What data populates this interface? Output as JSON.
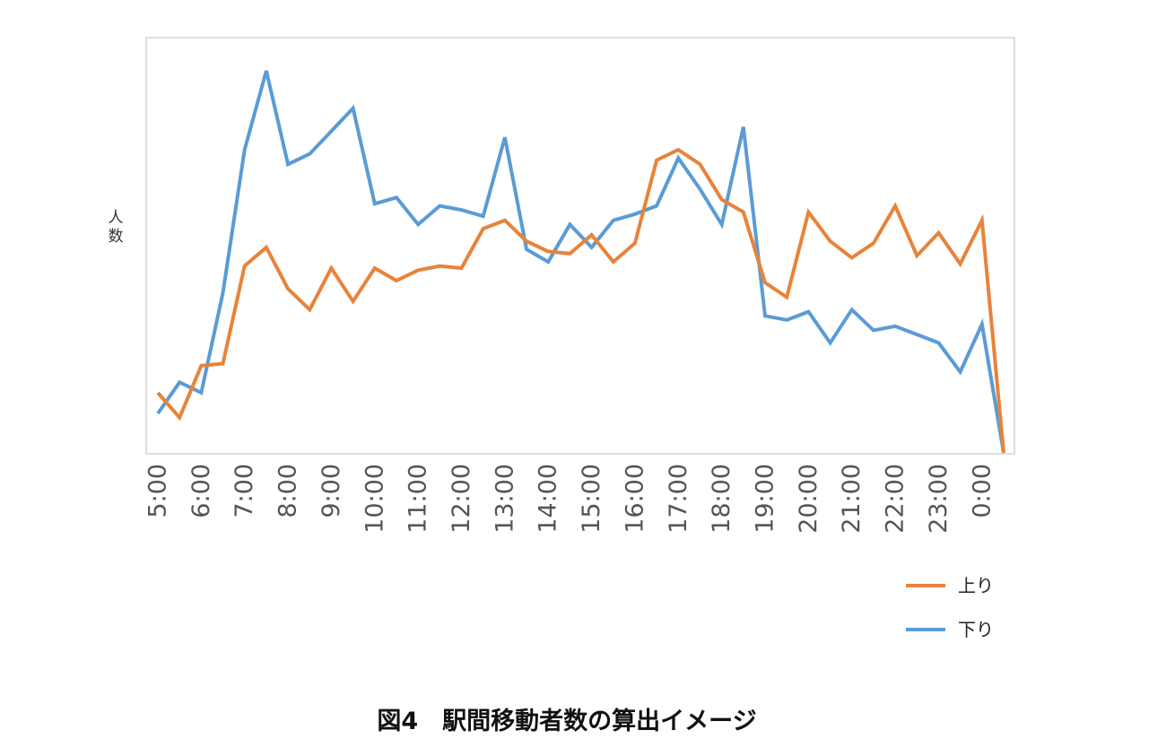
{
  "caption": "図4　駅間移動者数の算出イメージ",
  "colors": {
    "series_up": "#E8833A",
    "series_down": "#5B9BD5",
    "plot_border": "#bfbfbf",
    "tick_text": "#555555"
  },
  "chart_data": {
    "type": "line",
    "title": "",
    "xlabel": "",
    "ylabel": "人数",
    "ylim": [
      0,
      100
    ],
    "y_ticks_shown": false,
    "grid": false,
    "legend_position": "bottom-right",
    "x": [
      "5:00",
      "5:30",
      "6:00",
      "6:30",
      "7:00",
      "7:30",
      "8:00",
      "8:30",
      "9:00",
      "9:30",
      "10:00",
      "10:30",
      "11:00",
      "11:30",
      "12:00",
      "12:30",
      "13:00",
      "13:30",
      "14:00",
      "14:30",
      "15:00",
      "15:30",
      "16:00",
      "16:30",
      "17:00",
      "17:30",
      "18:00",
      "18:30",
      "19:00",
      "19:30",
      "20:00",
      "20:30",
      "21:00",
      "21:30",
      "22:00",
      "22:30",
      "23:00",
      "23:30",
      "0:00",
      "0:30"
    ],
    "tick_labels": [
      "5:00",
      "6:00",
      "7:00",
      "8:00",
      "9:00",
      "10:00",
      "11:00",
      "12:00",
      "13:00",
      "14:00",
      "15:00",
      "16:00",
      "17:00",
      "18:00",
      "19:00",
      "20:00",
      "21:00",
      "22:00",
      "23:00",
      "0:00"
    ],
    "series": [
      {
        "name": "上り",
        "values": [
          14.5,
          8.5,
          21,
          21.5,
          45,
          49.5,
          39.5,
          34.5,
          44.5,
          36.5,
          44.5,
          41.5,
          44,
          45,
          44.5,
          54,
          56,
          51,
          48.5,
          48,
          52.5,
          46,
          50.5,
          70.5,
          73,
          69.5,
          61,
          58,
          41,
          37.5,
          58,
          51,
          47,
          50.5,
          59.5,
          47.5,
          53,
          45.5,
          56,
          0
        ]
      },
      {
        "name": "下り",
        "values": [
          9.5,
          17,
          14.5,
          38.5,
          73,
          92,
          69.5,
          72,
          77.5,
          83,
          60,
          61.5,
          55,
          59.5,
          58.5,
          57,
          76,
          49,
          46,
          55,
          49.5,
          56,
          57.5,
          59.5,
          71,
          63.5,
          55,
          78.5,
          33,
          32,
          34,
          26.5,
          34.5,
          29.5,
          30.5,
          28.5,
          26.5,
          19.5,
          31,
          0
        ]
      }
    ]
  }
}
